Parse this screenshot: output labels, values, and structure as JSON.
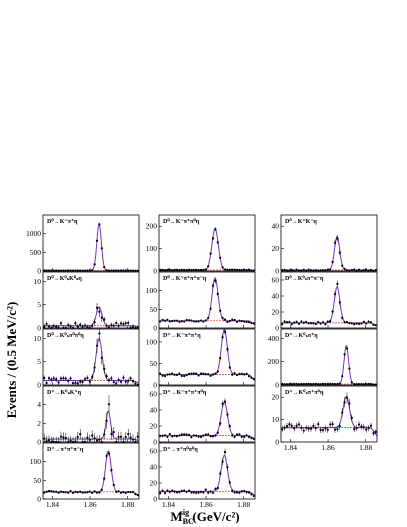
{
  "figure": {
    "ylabel": "Events / (0.5 MeV/c²)",
    "xlabel_main": "M",
    "xlabel_sub": "BC",
    "xlabel_sup": "sig",
    "xlabel_unit": " (GeV/c²)"
  },
  "colors": {
    "total_fit": "#7b2fbe",
    "signal": "#1f8a2b",
    "background": "#d62728",
    "data": "#000000",
    "bkg_curve": "#2c2cc8"
  },
  "chart_data": [
    {
      "type": "scatter",
      "title": "D⁰→K⁻π⁺η",
      "col": 0,
      "row": 0,
      "peak_mass": 1.8648,
      "peak_height": 1250,
      "sigma": 0.0012,
      "bkg_level": 8,
      "ylim": [
        0,
        1500
      ],
      "yticks": [
        0,
        500,
        1000
      ],
      "ytick_labels": [
        "0",
        "500",
        "1000"
      ],
      "xlim": [
        1.835,
        1.886
      ],
      "xticks": [
        1.84,
        1.86,
        1.88
      ]
    },
    {
      "type": "scatter",
      "title": "D⁰→K⁻π⁺π⁰η",
      "col": 1,
      "row": 0,
      "peak_mass": 1.8648,
      "peak_height": 185,
      "sigma": 0.0017,
      "bkg_level": 3,
      "ylim": [
        0,
        250
      ],
      "yticks": [
        0,
        100,
        200
      ],
      "ytick_labels": [
        "0",
        "100",
        "200"
      ],
      "xlim": [
        1.835,
        1.886
      ],
      "xticks": [
        1.84,
        1.86,
        1.88
      ]
    },
    {
      "type": "scatter",
      "title": "D⁰→K⁺K⁻η",
      "col": 2,
      "row": 0,
      "peak_mass": 1.8648,
      "peak_height": 30,
      "sigma": 0.0014,
      "bkg_level": 0.5,
      "ylim": [
        0,
        50
      ],
      "yticks": [
        0,
        20,
        40
      ],
      "ytick_labels": [
        "0",
        "20",
        "40"
      ],
      "xlim": [
        1.835,
        1.886
      ],
      "xticks": [
        1.84,
        1.86,
        1.88
      ]
    },
    {
      "type": "scatter",
      "title": "D⁰→K⁰ₛK⁰ₛη",
      "col": 0,
      "row": 1,
      "peak_mass": 1.8648,
      "peak_height": 4,
      "sigma": 0.0015,
      "bkg_level": 0.3,
      "ylim": [
        0,
        12
      ],
      "yticks": [
        0,
        5,
        10
      ],
      "ytick_labels": [
        "0",
        "5",
        "10"
      ],
      "xlim": [
        1.835,
        1.886
      ],
      "xticks": [
        1.84,
        1.86,
        1.88
      ]
    },
    {
      "type": "scatter",
      "title": "D⁰→K⁻π⁺π⁺π⁻η",
      "col": 1,
      "row": 1,
      "peak_mass": 1.8648,
      "peak_height": 115,
      "sigma": 0.0016,
      "bkg_level": 12,
      "ylim": [
        0,
        150
      ],
      "yticks": [
        0,
        50,
        100
      ],
      "ytick_labels": [
        "0",
        "50",
        "100"
      ],
      "xlim": [
        1.835,
        1.886
      ],
      "xticks": [
        1.84,
        1.86,
        1.88
      ]
    },
    {
      "type": "scatter",
      "title": "D⁰→K⁰ₛπ⁺π⁻η",
      "col": 2,
      "row": 1,
      "peak_mass": 1.8648,
      "peak_height": 45,
      "sigma": 0.0015,
      "bkg_level": 4,
      "ylim": [
        0,
        70
      ],
      "yticks": [
        0,
        20,
        40,
        60
      ],
      "ytick_labels": [
        "0",
        "20",
        "40",
        "60"
      ],
      "xlim": [
        1.835,
        1.886
      ],
      "xticks": [
        1.84,
        1.86,
        1.88
      ]
    },
    {
      "type": "scatter",
      "title": "D⁰→K⁰ₛπ⁰π⁰η",
      "col": 0,
      "row": 2,
      "peak_mass": 1.8648,
      "peak_height": 9,
      "sigma": 0.0016,
      "bkg_level": 0.6,
      "ylim": [
        0,
        12
      ],
      "yticks": [
        0,
        5,
        10
      ],
      "ytick_labels": [
        "0",
        "5",
        "10"
      ],
      "xlim": [
        1.835,
        1.886
      ],
      "xticks": [
        1.84,
        1.86,
        1.88
      ]
    },
    {
      "type": "scatter",
      "title": "D⁺→K⁻π⁺π⁺η",
      "col": 1,
      "row": 2,
      "peak_mass": 1.8697,
      "peak_height": 105,
      "sigma": 0.0016,
      "bkg_level": 15,
      "ylim": [
        0,
        130
      ],
      "yticks": [
        0,
        50,
        100
      ],
      "ytick_labels": [
        "0",
        "50",
        "100"
      ],
      "xlim": [
        1.835,
        1.886
      ],
      "xticks": [
        1.84,
        1.86,
        1.88
      ]
    },
    {
      "type": "scatter",
      "title": "D⁺→K⁰ₛπ⁺η",
      "col": 2,
      "row": 2,
      "peak_mass": 1.8697,
      "peak_height": 330,
      "sigma": 0.0012,
      "bkg_level": 5,
      "ylim": [
        0,
        480
      ],
      "yticks": [
        0,
        200,
        400
      ],
      "ytick_labels": [
        "0",
        "200",
        "400"
      ],
      "xlim": [
        1.835,
        1.886
      ],
      "xticks": [
        1.84,
        1.86,
        1.88
      ]
    },
    {
      "type": "scatter",
      "title": "D⁺→K⁰ₛK⁺η",
      "col": 0,
      "row": 3,
      "peak_mass": 1.8697,
      "peak_height": 3,
      "sigma": 0.0012,
      "bkg_level": 0.2,
      "ylim": [
        0,
        6
      ],
      "yticks": [
        0,
        2,
        4
      ],
      "ytick_labels": [
        "0",
        "2",
        "4"
      ],
      "xlim": [
        1.835,
        1.886
      ],
      "xticks": [
        1.84,
        1.86,
        1.88
      ]
    },
    {
      "type": "scatter",
      "title": "D⁺→K⁻π⁺π⁺π⁰η",
      "col": 1,
      "row": 3,
      "peak_mass": 1.8697,
      "peak_height": 42,
      "sigma": 0.0017,
      "bkg_level": 5,
      "ylim": [
        0,
        70
      ],
      "yticks": [
        0,
        20,
        40,
        60
      ],
      "ytick_labels": [
        "0",
        "20",
        "40",
        "60"
      ],
      "xlim": [
        1.835,
        1.886
      ],
      "xticks": [
        1.84,
        1.86,
        1.88
      ]
    },
    {
      "type": "scatter",
      "title": "D⁺→K⁰ₛπ⁺π⁰η",
      "col": 2,
      "row": 3,
      "peak_mass": 1.8697,
      "peak_height": 14,
      "sigma": 0.0017,
      "bkg_level": 4,
      "ylim": [
        0,
        25
      ],
      "yticks": [
        0,
        10,
        20
      ],
      "ytick_labels": [
        "0",
        "10",
        "20"
      ],
      "xlim": [
        1.835,
        1.886
      ],
      "xticks": [
        1.84,
        1.86,
        1.88
      ]
    },
    {
      "type": "scatter",
      "title": "D⁺→π⁺π⁺π⁻η",
      "col": 0,
      "row": 4,
      "peak_mass": 1.8697,
      "peak_height": 110,
      "sigma": 0.0015,
      "bkg_level": 12,
      "ylim": [
        0,
        150
      ],
      "yticks": [
        0,
        50,
        100
      ],
      "ytick_labels": [
        "0",
        "50",
        "100"
      ],
      "xlim": [
        1.835,
        1.886
      ],
      "xticks": [
        1.84,
        1.86,
        1.88
      ]
    },
    {
      "type": "scatter",
      "title": "D⁺→π⁺π⁰π⁰η",
      "col": 1,
      "row": 4,
      "peak_mass": 1.8697,
      "peak_height": 45,
      "sigma": 0.0017,
      "bkg_level": 6,
      "ylim": [
        0,
        70
      ],
      "yticks": [
        0,
        20,
        40,
        60
      ],
      "ytick_labels": [
        "0",
        "20",
        "40",
        "60"
      ],
      "xlim": [
        1.835,
        1.886
      ],
      "xticks": [
        1.84,
        1.86,
        1.88
      ]
    }
  ]
}
